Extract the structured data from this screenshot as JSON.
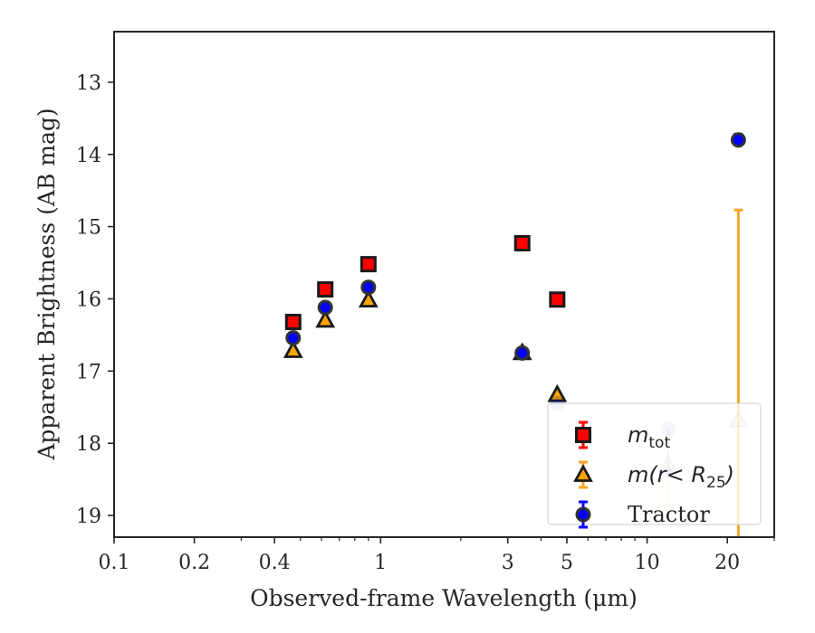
{
  "chart_data": {
    "type": "scatter",
    "title": "",
    "xlabel": "Observed-frame Wavelength (μm)",
    "ylabel": "Apparent Brightness (AB mag)",
    "xscale": "log",
    "xlim": [
      0.1,
      30
    ],
    "ylim": [
      19.3,
      12.3
    ],
    "y_inverted": true,
    "grid": false,
    "xticks": [
      {
        "value": 0.1,
        "label": "0.1"
      },
      {
        "value": 0.2,
        "label": "0.2"
      },
      {
        "value": 0.4,
        "label": "0.4"
      },
      {
        "value": 1,
        "label": "1"
      },
      {
        "value": 3,
        "label": "3"
      },
      {
        "value": 5,
        "label": "5"
      },
      {
        "value": 10,
        "label": "10"
      },
      {
        "value": 20,
        "label": "20"
      }
    ],
    "yticks": [
      {
        "value": 13,
        "label": "13"
      },
      {
        "value": 14,
        "label": "14"
      },
      {
        "value": 15,
        "label": "15"
      },
      {
        "value": 16,
        "label": "16"
      },
      {
        "value": 17,
        "label": "17"
      },
      {
        "value": 18,
        "label": "18"
      },
      {
        "value": 19,
        "label": "19"
      }
    ],
    "legend_position": "lower-right",
    "series": [
      {
        "key": "mtot",
        "legend_main": "m",
        "legend_sub": "tot",
        "marker": "square",
        "face_color": "#ff0000",
        "edge_color": "#1a1a1a",
        "points": [
          {
            "x": 0.47,
            "y": 16.32
          },
          {
            "x": 0.62,
            "y": 15.87
          },
          {
            "x": 0.9,
            "y": 15.52
          },
          {
            "x": 3.4,
            "y": 15.23
          },
          {
            "x": 4.6,
            "y": 16.01
          }
        ]
      },
      {
        "key": "mr25",
        "legend_main": "m(r< R",
        "legend_sub": "25",
        "legend_tail": ")",
        "marker": "triangle",
        "face_color": "#ffa500",
        "edge_color": "#1a1a1a",
        "errorbar_color": "#f5a623",
        "points": [
          {
            "x": 0.47,
            "y": 16.72
          },
          {
            "x": 0.62,
            "y": 16.3
          },
          {
            "x": 0.9,
            "y": 16.02
          },
          {
            "x": 3.4,
            "y": 16.75
          },
          {
            "x": 4.6,
            "y": 17.33
          },
          {
            "x": 12,
            "y": 18.3,
            "upper_limit": true,
            "faded": true
          },
          {
            "x": 22,
            "y": 17.68,
            "yerr_low": 14.77,
            "yerr_high": 19.3,
            "faded": true
          }
        ]
      },
      {
        "key": "tractor",
        "legend_main": "Tractor",
        "marker": "circle",
        "face_color": "#0000ff",
        "edge_color": "#333333",
        "points": [
          {
            "x": 0.47,
            "y": 16.54
          },
          {
            "x": 0.62,
            "y": 16.12
          },
          {
            "x": 0.9,
            "y": 15.84
          },
          {
            "x": 3.4,
            "y": 16.75
          },
          {
            "x": 4.6,
            "y": 17.45,
            "faded": true
          },
          {
            "x": 12,
            "y": 17.8,
            "faded": true,
            "upper_limit": true
          },
          {
            "x": 22,
            "y": 13.8,
            "yerr_low": 13.72,
            "yerr_high": 13.88
          }
        ]
      }
    ]
  }
}
